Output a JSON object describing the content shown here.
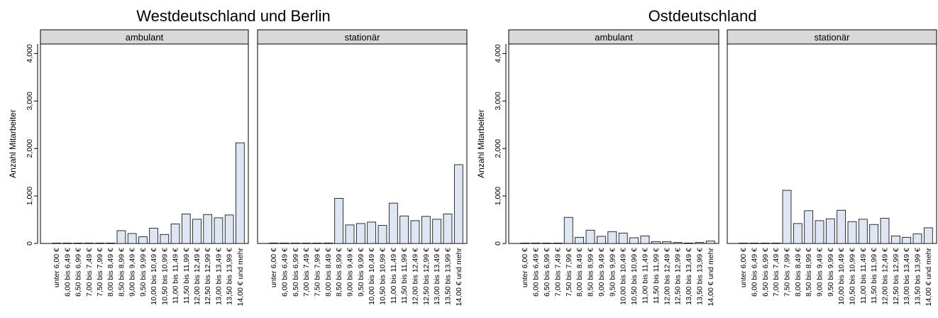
{
  "chart_data": {
    "type": "bar",
    "y_label": "Anzahl Mitarbeiter",
    "y_ticks": [
      "0",
      "1,000",
      "2,000",
      "3,000",
      "4,000"
    ],
    "y_tick_values": [
      0,
      1000,
      2000,
      3000,
      4000
    ],
    "ylim": [
      0,
      4200
    ],
    "categories": [
      "unter 6,00 €",
      "6,00 bis 6,49 €",
      "6,50 bis 6,99 €",
      "7,00 bis 7,49 €",
      "7,50 bis 7,99 €",
      "8,00 bis 8,49 €",
      "8,50 bis 8,99 €",
      "9,00 bis 9,49 €",
      "9,50 bis 9,99 €",
      "10,00 bis 10,49 €",
      "10,50 bis 10,99 €",
      "11,00 bis 11,49 €",
      "11,50 bis 11,99 €",
      "12,00 bis 12,49 €",
      "12,50 bis 12,99 €",
      "13,00 bis 13,49 €",
      "13,50 bis 13,99 €",
      "14,00 € und mehr"
    ],
    "bar_fill": "#dde6f2",
    "bar_stroke": "#000000",
    "strip_fill": "#d9d9d9",
    "groups": [
      {
        "title": "Westdeutschland und Berlin",
        "panels": [
          {
            "label": "ambulant",
            "values": [
              0,
              0,
              0,
              0,
              0,
              0,
              270,
              210,
              140,
              320,
              190,
              410,
              620,
              510,
              610,
              540,
              600,
              2120
            ]
          },
          {
            "label": "stationär",
            "values": [
              10,
              0,
              0,
              0,
              0,
              10,
              950,
              390,
              420,
              450,
              380,
              850,
              580,
              480,
              570,
              510,
              620,
              1660
            ]
          }
        ]
      },
      {
        "title": "Ostdeutschland",
        "panels": [
          {
            "label": "ambulant",
            "values": [
              0,
              0,
              0,
              0,
              550,
              130,
              280,
              150,
              250,
              220,
              120,
              160,
              40,
              40,
              20,
              10,
              20,
              50
            ]
          },
          {
            "label": "stationär",
            "values": [
              0,
              0,
              0,
              0,
              1120,
              420,
              690,
              480,
              520,
              700,
              460,
              510,
              400,
              530,
              160,
              130,
              200,
              330
            ]
          }
        ]
      }
    ]
  }
}
